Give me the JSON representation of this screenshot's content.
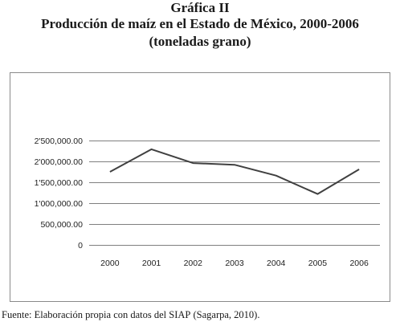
{
  "header": {
    "label_prefix": "Gráfica ",
    "label_numeral": "II",
    "title": "Producción de maíz en el Estado de México, 2000-2006",
    "subtitle": "(toneladas grano)"
  },
  "footer": {
    "source_prefix": "Fuente: Elaboración propia con datos del ",
    "source_acronym": "SIAP",
    "source_suffix": " (Sagarpa, 2010)."
  },
  "colors": {
    "line": "#404040",
    "grid": "#555555"
  },
  "chart_data": {
    "type": "line",
    "title": "Producción de maíz en el Estado de México, 2000-2006",
    "xlabel": "",
    "ylabel": "",
    "categories": [
      "2000",
      "2001",
      "2002",
      "2003",
      "2004",
      "2005",
      "2006"
    ],
    "series": [
      {
        "values": [
          1750000,
          2290000,
          1960000,
          1920000,
          1660000,
          1220000,
          1810000
        ]
      }
    ],
    "ylim": [
      0,
      2500000
    ],
    "yticks": [
      0,
      500000,
      1000000,
      1500000,
      2000000,
      2500000
    ],
    "ytick_labels": [
      "0",
      "500,000.00",
      "1'000,000.00",
      "1'500,000.00",
      "2'000,000.00",
      "2'500,000.00"
    ],
    "grid": true,
    "legend": "none"
  }
}
